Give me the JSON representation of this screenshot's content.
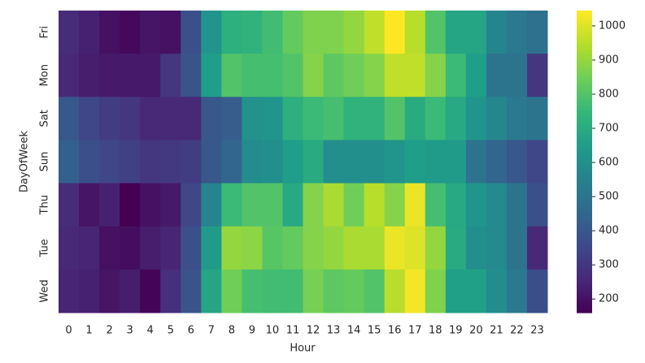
{
  "chart_data": {
    "type": "heatmap",
    "xlabel": "Hour",
    "ylabel": "DayOfWeek",
    "x": [
      0,
      1,
      2,
      3,
      4,
      5,
      6,
      7,
      8,
      9,
      10,
      11,
      12,
      13,
      14,
      15,
      16,
      17,
      18,
      19,
      20,
      21,
      22,
      23
    ],
    "y": [
      "Fri",
      "Mon",
      "Sat",
      "Sun",
      "Thu",
      "Tue",
      "Wed"
    ],
    "values": [
      [
        270,
        240,
        200,
        180,
        210,
        200,
        380,
        620,
        720,
        730,
        770,
        830,
        870,
        870,
        900,
        960,
        1045,
        950,
        800,
        680,
        680,
        560,
        520,
        490
      ],
      [
        260,
        230,
        220,
        220,
        220,
        300,
        390,
        650,
        800,
        780,
        780,
        800,
        880,
        820,
        850,
        880,
        960,
        960,
        880,
        760,
        650,
        500,
        500,
        300
      ],
      [
        400,
        350,
        320,
        300,
        260,
        260,
        260,
        400,
        420,
        610,
        620,
        720,
        760,
        780,
        730,
        730,
        800,
        700,
        760,
        690,
        620,
        570,
        520,
        500
      ],
      [
        430,
        380,
        350,
        330,
        300,
        310,
        320,
        400,
        450,
        590,
        600,
        650,
        700,
        600,
        600,
        600,
        620,
        650,
        640,
        640,
        500,
        450,
        400,
        350
      ],
      [
        270,
        210,
        240,
        160,
        200,
        220,
        350,
        560,
        760,
        800,
        800,
        690,
        880,
        930,
        850,
        950,
        880,
        1020,
        780,
        690,
        620,
        580,
        500,
        380
      ],
      [
        260,
        250,
        200,
        190,
        230,
        250,
        380,
        640,
        900,
        890,
        810,
        830,
        880,
        900,
        930,
        930,
        1020,
        1000,
        900,
        700,
        600,
        580,
        500,
        260
      ],
      [
        250,
        240,
        210,
        230,
        170,
        280,
        390,
        680,
        850,
        780,
        770,
        770,
        860,
        820,
        830,
        800,
        950,
        1030,
        870,
        660,
        660,
        590,
        520,
        370
      ]
    ],
    "colormap": "viridis",
    "zlim": [
      160,
      1045
    ],
    "zticks": [
      200,
      300,
      400,
      500,
      600,
      700,
      800,
      900,
      1000
    ]
  }
}
